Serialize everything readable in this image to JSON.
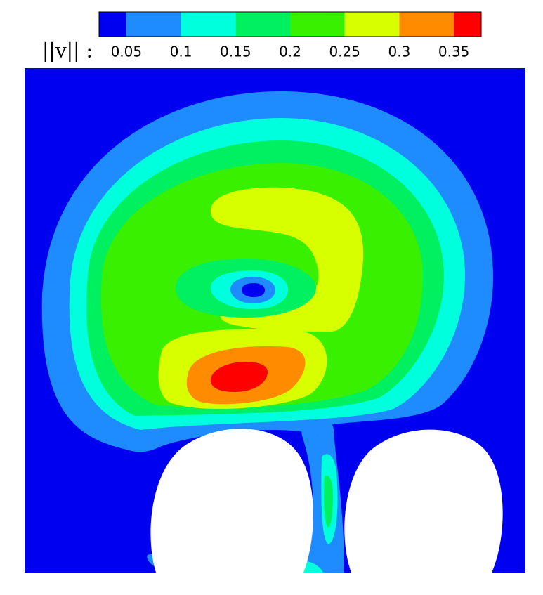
{
  "chart_data": {
    "type": "contour",
    "colorbar_label": "||v|| :",
    "levels": [
      0.05,
      0.1,
      0.15,
      0.2,
      0.25,
      0.3,
      0.35
    ],
    "clim": [
      0.025,
      0.375
    ],
    "colors": [
      "#0000f0",
      "#1e8cff",
      "#00ffdd",
      "#00f060",
      "#38f000",
      "#d8ff00",
      "#ff8c00",
      "#ff0000"
    ]
  }
}
